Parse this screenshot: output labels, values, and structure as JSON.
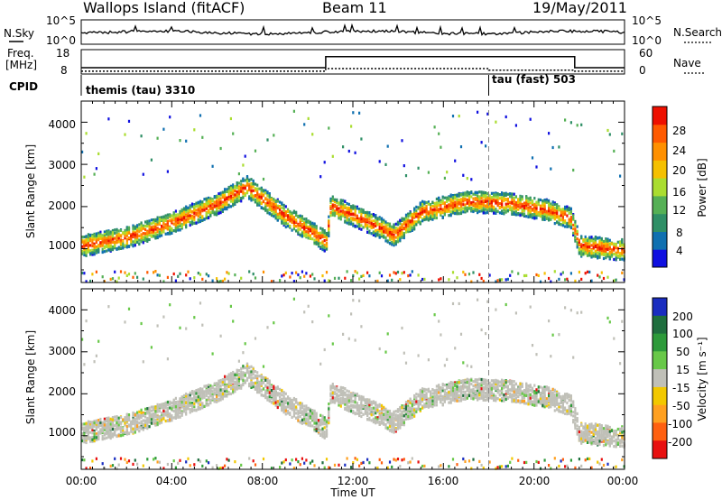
{
  "header": {
    "site": "Wallops Island (fitACF)",
    "beam": "Beam 11",
    "date": "19/May/2011"
  },
  "noise_panel": {
    "left_label": "N.Sky",
    "right_label": "N.Search",
    "left_ticks": [
      "10^5",
      "10^0"
    ],
    "right_ticks": [
      "10^5",
      "10^0"
    ]
  },
  "freq_panel": {
    "left_label_1": "Freq.",
    "left_label_2": "[MHz]",
    "right_label": "Nave",
    "left_ticks": [
      "18",
      "8"
    ],
    "right_ticks": [
      "60",
      "0"
    ]
  },
  "cpid_panel": {
    "label": "CPID",
    "modes": [
      {
        "name": "themis (tau) 3310"
      },
      {
        "name": "tau (fast) 503"
      }
    ]
  },
  "power_panel": {
    "ylabel": "Slant Range [km]",
    "yticks": [
      "1000",
      "2000",
      "3000",
      "4000"
    ],
    "colorbar_title": "Power [dB]",
    "colorbar_ticks": [
      "4",
      "8",
      "12",
      "16",
      "20",
      "24",
      "28"
    ],
    "colors": [
      "#1010e0",
      "#1070b0",
      "#2f8f66",
      "#55b055",
      "#aadd30",
      "#f5c000",
      "#ff9000",
      "#ff5a00",
      "#ee1000"
    ]
  },
  "velocity_panel": {
    "ylabel": "Slant Range [km]",
    "yticks": [
      "1000",
      "2000",
      "3000",
      "4000"
    ],
    "colorbar_title": "Velocity [m s⁻¹]",
    "colorbar_ticks": [
      "200",
      "100",
      "50",
      "15",
      "-15",
      "-50",
      "-100",
      "-200"
    ],
    "colors": [
      "#1a2dc0",
      "#1f6e3e",
      "#2d9a3a",
      "#68c848",
      "#c0c0b8",
      "#f2c800",
      "#ffa020",
      "#ff6010",
      "#e81010"
    ]
  },
  "xaxis": {
    "label": "Time UT",
    "ticks": [
      "00:00",
      "04:00",
      "08:00",
      "12:00",
      "16:00",
      "20:00",
      "00:00"
    ]
  },
  "chart_data": {
    "type": "heatmap",
    "title": "Wallops Island (fitACF)",
    "xlabel": "Time UT",
    "ylabel": "Slant Range [km]",
    "x_range_hours_ut": [
      0,
      24
    ],
    "ylim_km": [
      200,
      4500
    ],
    "mode_change_hour_ut": 18.0,
    "frequency": {
      "unit": "MHz",
      "segments": [
        {
          "start_hour": 0.0,
          "end_hour": 10.8,
          "value": 10.4
        },
        {
          "start_hour": 10.8,
          "end_hour": 21.8,
          "value": 15.3
        },
        {
          "start_hour": 21.8,
          "end_hour": 24.0,
          "value": 10.4
        }
      ]
    },
    "nave": {
      "segments": [
        {
          "start_hour": 0.0,
          "end_hour": 10.8,
          "value": 5
        },
        {
          "start_hour": 10.8,
          "end_hour": 18.0,
          "value": 12
        },
        {
          "start_hour": 18.0,
          "end_hour": 21.8,
          "value": 8
        },
        {
          "start_hour": 21.8,
          "end_hour": 24.0,
          "value": 5
        }
      ]
    },
    "scatter_band": [
      {
        "hour": 0.0,
        "range_km": 1100
      },
      {
        "hour": 2.0,
        "range_km": 1300
      },
      {
        "hour": 4.0,
        "range_km": 1650
      },
      {
        "hour": 6.0,
        "range_km": 2100
      },
      {
        "hour": 7.3,
        "range_km": 2500
      },
      {
        "hour": 9.0,
        "range_km": 1800
      },
      {
        "hour": 10.8,
        "range_km": 1200
      },
      {
        "hour": 11.0,
        "range_km": 2050
      },
      {
        "hour": 12.5,
        "range_km": 1700
      },
      {
        "hour": 13.8,
        "range_km": 1350
      },
      {
        "hour": 15.0,
        "range_km": 1900
      },
      {
        "hour": 17.0,
        "range_km": 2150
      },
      {
        "hour": 19.0,
        "range_km": 2100
      },
      {
        "hour": 20.5,
        "range_km": 1950
      },
      {
        "hour": 21.6,
        "range_km": 1750
      },
      {
        "hour": 22.0,
        "range_km": 1100
      },
      {
        "hour": 24.0,
        "range_km": 1000
      }
    ]
  }
}
